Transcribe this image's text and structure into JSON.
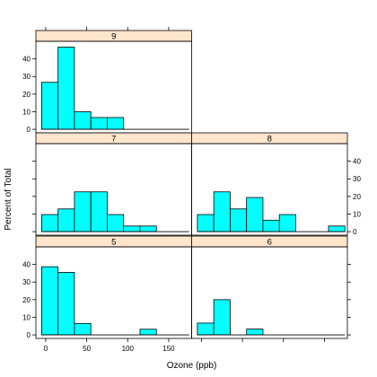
{
  "chart_data": {
    "type": "bar",
    "xlabel": "Ozone (ppb)",
    "ylabel": "Percent of Total",
    "x_ticks": [
      0,
      50,
      100,
      150
    ],
    "y_ticks": [
      0,
      10,
      20,
      30,
      40
    ],
    "xlim": [
      -12,
      178
    ],
    "ylim": [
      -2,
      50
    ],
    "bin_width": 20,
    "bin_start": -5,
    "panels": [
      {
        "label": "5",
        "values": [
          38.7,
          35.5,
          6.5,
          0,
          0,
          0,
          3.2,
          0,
          0
        ]
      },
      {
        "label": "6",
        "values": [
          6.7,
          20,
          0,
          3.3,
          0,
          0,
          0,
          0,
          0
        ]
      },
      {
        "label": "7",
        "values": [
          9.7,
          12.9,
          22.6,
          22.6,
          9.7,
          3.2,
          3.2,
          0,
          0
        ]
      },
      {
        "label": "8",
        "values": [
          9.7,
          22.6,
          12.9,
          19.4,
          6.5,
          9.7,
          0,
          0,
          3.2
        ]
      },
      {
        "label": "9",
        "values": [
          26.7,
          46.7,
          10,
          6.7,
          6.7,
          0,
          0,
          0,
          0
        ]
      }
    ]
  }
}
